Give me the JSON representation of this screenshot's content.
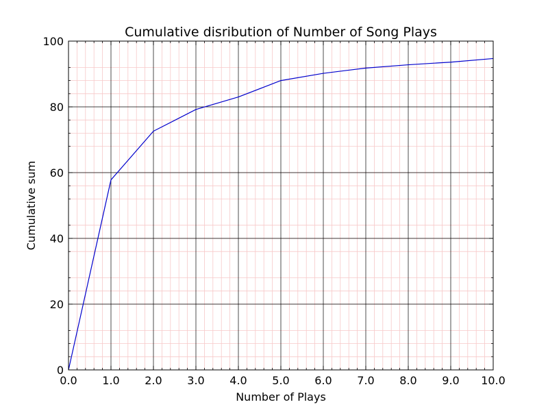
{
  "chart_data": {
    "type": "line",
    "title": "Cumulative disribution of Number of Song Plays",
    "xlabel": "Number of Plays",
    "ylabel": "Cumulative sum",
    "xlim": [
      0,
      10
    ],
    "ylim": [
      0,
      100
    ],
    "xticks": [
      "0.0",
      "1.0",
      "2.0",
      "3.0",
      "4.0",
      "5.0",
      "6.0",
      "7.0",
      "8.0",
      "9.0",
      "10.0"
    ],
    "yticks": [
      "0",
      "20",
      "40",
      "60",
      "80",
      "100"
    ],
    "grid": {
      "major": true,
      "minor": true
    },
    "colors": {
      "line": "#0000cc",
      "major_grid": "#000000",
      "minor_grid": "#f7c8c8",
      "axes": "#000000"
    },
    "series": [
      {
        "x": [
          0,
          1,
          2,
          3,
          4,
          5,
          6,
          7,
          8,
          9,
          10
        ],
        "values": [
          0,
          57.8,
          72.6,
          79.2,
          83.0,
          88.0,
          90.2,
          91.8,
          92.8,
          93.6,
          94.7
        ]
      }
    ]
  }
}
